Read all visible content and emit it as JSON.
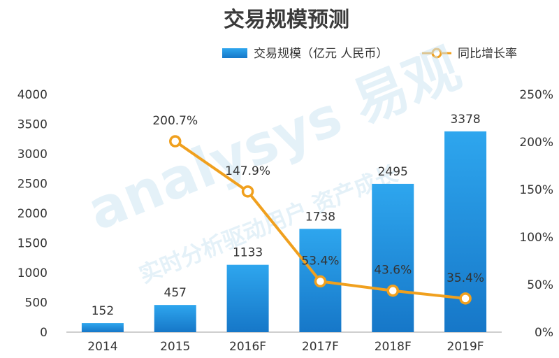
{
  "chart_data": {
    "type": "bar",
    "title": "交易规模预测",
    "categories": [
      "2014",
      "2015",
      "2016F",
      "2017F",
      "2018F",
      "2019F"
    ],
    "series": [
      {
        "name": "交易规模（亿元 人民币）",
        "type": "bar",
        "axis": "left",
        "values": [
          152,
          457,
          1133,
          1738,
          2495,
          3378
        ],
        "labels": [
          "152",
          "457",
          "1133",
          "1738",
          "2495",
          "3378"
        ],
        "color": "#1f8fdc"
      },
      {
        "name": "同比增长率",
        "type": "line",
        "axis": "right",
        "values": [
          null,
          200.7,
          147.9,
          53.4,
          43.6,
          35.4
        ],
        "labels": [
          "",
          "200.7%",
          "147.9%",
          "53.4%",
          "43.6%",
          "35.4%"
        ],
        "color": "#f0a01e"
      }
    ],
    "left_axis": {
      "ylim": [
        0,
        4000
      ],
      "ticks": [
        "0",
        "500",
        "1000",
        "1500",
        "2000",
        "2500",
        "3000",
        "3500",
        "4000"
      ]
    },
    "right_axis": {
      "ylim": [
        0,
        250
      ],
      "ticks": [
        "0%",
        "50%",
        "100%",
        "150%",
        "200%",
        "250%"
      ]
    },
    "legend_position": "top-right",
    "watermark": {
      "brand": "analysys 易观",
      "slogan": "实时分析驱动用户 资产成长"
    }
  }
}
